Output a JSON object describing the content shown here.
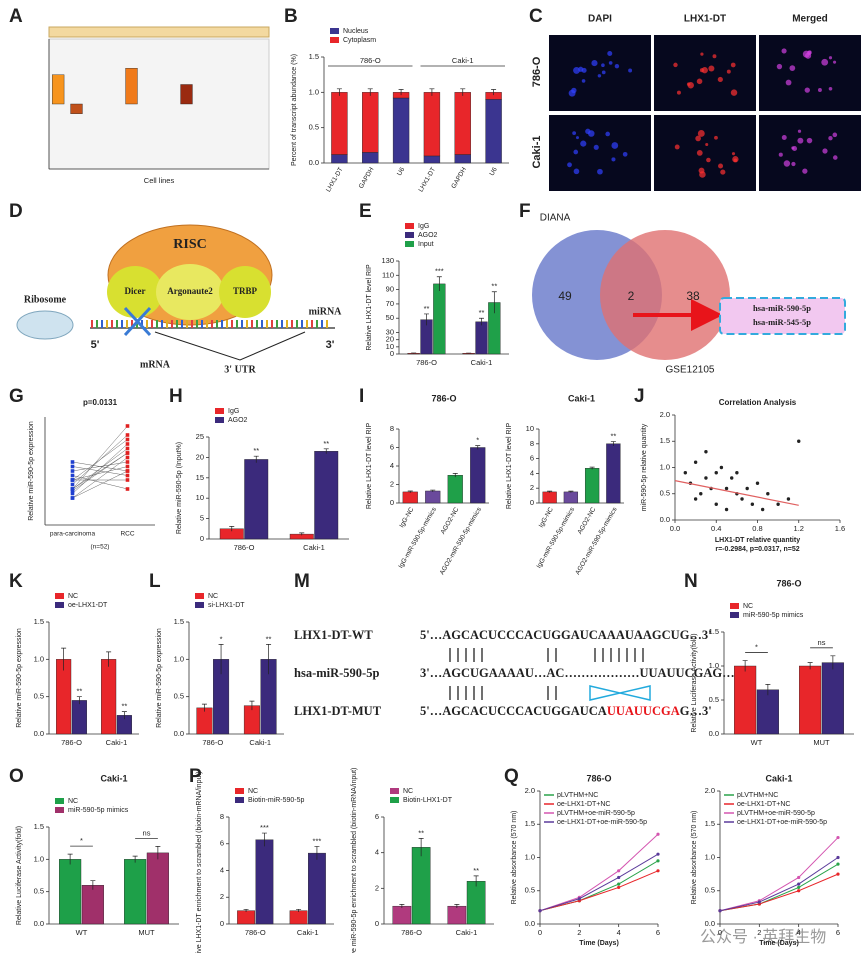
{
  "panels": [
    {
      "letter": "A",
      "type": "bar",
      "xlabel": "Cell lines",
      "ylim": [
        -1,
        1
      ],
      "categories": [
        null,
        null,
        null,
        null,
        null,
        null,
        null,
        null,
        null,
        null,
        null,
        null
      ],
      "series": [
        {
          "colors": [
            "#f7941d",
            "#c0501a",
            null,
            null,
            "#f07a1a",
            null,
            null,
            "#9a2a10",
            null,
            null,
            null,
            null
          ],
          "values": [
            0.45,
            -0.15,
            null,
            null,
            0.55,
            null,
            null,
            0.3,
            null,
            null,
            null,
            null
          ]
        }
      ]
    },
    {
      "letter": "B",
      "type": "bar",
      "stacked": true,
      "ylabel": "Percent of transcript abundance (%)",
      "ylim": [
        0,
        1.5
      ],
      "yticks": [
        {
          "value": 0,
          "label": "0.0"
        },
        0.5,
        {
          "value": 1,
          "label": "1.0"
        },
        1.5
      ],
      "groups": [
        {
          "name": "786-O",
          "categories": [
            "LHX1-DT",
            "GAPDH",
            "U6"
          ]
        },
        {
          "name": "Caki-1",
          "categories": [
            "LHX1-DT",
            "GAPDH",
            "U6"
          ]
        }
      ],
      "series": [
        {
          "name": "Nucleus",
          "color": "#3b3590",
          "values": [
            0.12,
            0.15,
            0.92,
            0.1,
            0.12,
            0.9
          ]
        },
        {
          "name": "Cytoplasm",
          "color": "#e8262a",
          "values": [
            0.88,
            0.85,
            0.08,
            0.9,
            0.88,
            0.1
          ],
          "errors": [
            0.05,
            0.05,
            0.04,
            0.05,
            0.05,
            0.04
          ]
        }
      ]
    },
    {
      "letter": "C",
      "type": "images",
      "columns": [
        "DAPI",
        "LHX1-DT",
        "Merged"
      ],
      "rows": [
        "786-O",
        "Caki-1"
      ]
    },
    {
      "letter": "D",
      "type": "diagram",
      "complex": "RISC",
      "parts": [
        "Dicer",
        "Argonaute2",
        "TRBP"
      ],
      "ribosome": "Ribosome",
      "mirna": "miRNA",
      "five": "5'",
      "three": "3'",
      "mrna": "mRNA",
      "utr": "3' UTR"
    },
    {
      "letter": "E",
      "type": "bar",
      "ylabel": "Relative LHX1-DT level RIP",
      "categories": [
        "786-O",
        "Caki-1"
      ],
      "ylim": [
        0,
        130
      ],
      "yticks": [
        0,
        10,
        20,
        30,
        50,
        70,
        90,
        110,
        130
      ],
      "series": [
        {
          "name": "IgG",
          "color": "#e8262a",
          "values": [
            1,
            1
          ],
          "errors": [
            0.5,
            0.3
          ]
        },
        {
          "name": "AGO2",
          "color": "#3b2a7c",
          "values": [
            48,
            45
          ],
          "errors": [
            8,
            5
          ],
          "sig": [
            "**",
            "**"
          ]
        },
        {
          "name": "Input",
          "color": "#1fa049",
          "values": [
            98,
            72
          ],
          "errors": [
            10,
            15
          ],
          "sig": [
            "***",
            "**"
          ]
        }
      ]
    },
    {
      "letter": "F",
      "type": "venn",
      "sets": [
        {
          "name": "DIANA",
          "only": 49
        },
        {
          "name": "GSE12105",
          "only": 38
        }
      ],
      "overlap": 2,
      "result": [
        "hsa-miR-590-5p",
        "hsa-miR-545-5p"
      ]
    },
    {
      "letter": "G",
      "type": "paired",
      "title": "p=0.0131",
      "ylabel": "Relative miR-590-5p expression",
      "categories": [
        "para-carcinoma",
        "RCC"
      ],
      "note": "(n=52)",
      "ylim": [
        0,
        12
      ],
      "before": [
        3,
        4,
        5,
        3.5,
        6,
        4.5,
        5.5,
        4,
        7,
        3,
        5,
        6.5,
        4,
        5,
        3.8
      ],
      "after": [
        6,
        8,
        5,
        9,
        7,
        10,
        4,
        8.5,
        6,
        7.5,
        9.5,
        5.5,
        11,
        6.5,
        8
      ]
    },
    {
      "letter": "H",
      "type": "bar",
      "ylabel": "Relative miR-590-5p (Input%)",
      "categories": [
        "786-O",
        "Caki-1"
      ],
      "ylim": [
        0,
        25
      ],
      "yticks": [
        0,
        5,
        10,
        15,
        20,
        25
      ],
      "series": [
        {
          "name": "IgG",
          "color": "#e8262a",
          "values": [
            2.5,
            1.2
          ],
          "errors": [
            0.6,
            0.3
          ]
        },
        {
          "name": "AGO2",
          "color": "#3b2a7c",
          "values": [
            19.5,
            21.5
          ],
          "errors": [
            0.8,
            0.6
          ],
          "sig": [
            "**",
            "**"
          ]
        }
      ]
    },
    {
      "letter": "I",
      "type": "bar",
      "title": "786-O",
      "ylabel": "Relative LHX1-DT level RIP",
      "categories": [
        "IgG-NC",
        "IgG-miR-590-5p-mimics",
        "AGO2-NC",
        "AGO2-miR-590-5p-mimics"
      ],
      "ylim": [
        0,
        8
      ],
      "yticks": [
        0,
        2,
        4,
        6,
        8
      ],
      "series": [
        {
          "colors": [
            "#e8262a",
            "#6a4a9c",
            "#1fa049",
            "#3b2a7c"
          ],
          "values": [
            1.2,
            1.3,
            3.0,
            6.0
          ],
          "errors": [
            0.1,
            0.1,
            0.2,
            0.2
          ],
          "sig": [
            null,
            null,
            null,
            "*"
          ]
        }
      ]
    },
    {
      "type": "bar",
      "title": "Caki-1",
      "ylabel": "Relative LHX1-DT level RIP",
      "categories": [
        "IgG-NC",
        "IgG-miR-590-5p-mimics",
        "AGO2-NC",
        "AGO2-miR-590-5p-mimics"
      ],
      "ylim": [
        0,
        10
      ],
      "yticks": [
        0,
        2,
        4,
        6,
        8,
        10
      ],
      "series": [
        {
          "colors": [
            "#e8262a",
            "#6a4a9c",
            "#1fa049",
            "#3b2a7c"
          ],
          "values": [
            1.5,
            1.5,
            4.7,
            8.0
          ],
          "errors": [
            0.1,
            0.1,
            0.15,
            0.3
          ],
          "sig": [
            null,
            null,
            null,
            "**"
          ]
        }
      ]
    },
    {
      "letter": "J",
      "type": "scatter",
      "title": "Correlation Analysis",
      "xlabel": "LHX1-DT relative quantity",
      "ylabel": "miR-590-5p relative quantity",
      "note": "r=-0.2984, p=0.0317, n=52",
      "xlim": [
        0,
        1.6
      ],
      "xticks": [
        {
          "value": 0,
          "label": "0.0"
        },
        0.4,
        0.8,
        1.2,
        1.6
      ],
      "ylim": [
        0,
        2
      ],
      "yticks": [
        {
          "value": 0,
          "label": "0.0"
        },
        0.5,
        {
          "value": 1,
          "label": "1.0"
        },
        1.5,
        {
          "value": 2,
          "label": "2.0"
        }
      ],
      "x": [
        0.1,
        0.15,
        0.2,
        0.25,
        0.3,
        0.3,
        0.35,
        0.4,
        0.4,
        0.45,
        0.5,
        0.5,
        0.55,
        0.6,
        0.6,
        0.65,
        0.7,
        0.75,
        0.8,
        0.85,
        0.9,
        1.0,
        1.1,
        1.2,
        0.2
      ],
      "y": [
        0.9,
        0.7,
        1.1,
        0.5,
        0.8,
        1.3,
        0.6,
        0.9,
        0.3,
        1.0,
        0.6,
        0.2,
        0.8,
        0.5,
        0.9,
        0.4,
        0.6,
        0.3,
        0.7,
        0.2,
        0.5,
        0.3,
        0.4,
        1.5,
        0.4
      ],
      "fit_x": [
        0,
        1.2
      ],
      "fit_y": [
        0.75,
        0.28
      ],
      "color": "#222222",
      "fit_color": "#e06060"
    },
    {
      "letter": "K",
      "type": "bar",
      "ylabel": "Relative miR-590-5p expression",
      "categories": [
        "786-O",
        "Caki-1"
      ],
      "ylim": [
        0,
        1.5
      ],
      "yticks": [
        {
          "value": 0,
          "label": "0.0"
        },
        0.5,
        {
          "value": 1,
          "label": "1.0"
        },
        1.5
      ],
      "series": [
        {
          "name": "NC",
          "color": "#e8262a",
          "values": [
            1,
            1
          ],
          "errors": [
            0.15,
            0.1
          ]
        },
        {
          "name": "oe-LHX1-DT",
          "color": "#3b2a7c",
          "values": [
            0.45,
            0.25
          ],
          "errors": [
            0.05,
            0.05
          ],
          "sig": [
            "**",
            "**"
          ]
        }
      ]
    },
    {
      "letter": "L",
      "type": "bar",
      "ylabel": "Relative miR-590-5p expression",
      "categories": [
        "786-O",
        "Caki-1"
      ],
      "ylim": [
        0,
        1.5
      ],
      "yticks": [
        {
          "value": 0,
          "label": "0.0"
        },
        0.5,
        {
          "value": 1,
          "label": "1.0"
        },
        1.5
      ],
      "series": [
        {
          "name": "NC",
          "color": "#e8262a",
          "values": [
            0.35,
            0.38
          ],
          "errors": [
            0.05,
            0.06
          ]
        },
        {
          "name": "si-LHX1-DT",
          "color": "#3b2a7c",
          "values": [
            1.0,
            1.0
          ],
          "errors": [
            0.2,
            0.2
          ],
          "sig": [
            "*",
            "**"
          ]
        }
      ]
    },
    {
      "letter": "M",
      "type": "sequence",
      "rows": [
        {
          "name": "LHX1-DT-WT",
          "seq": "5'…AGCACUCCCACUGGAUCAAAUAAGCUG…3'"
        },
        {
          "name": "hsa-miR-590-5p",
          "seq": "3'…AGCUGAAAAU…AC………………UUAUUCGAG…5'"
        },
        {
          "name": "LHX1-DT-MUT",
          "seq": "5'…AGCACUCCCACUGGAUCA",
          "mut": "UUAUUCGA",
          "tail": "G…3'"
        }
      ]
    },
    {
      "letter": "N",
      "type": "bar",
      "title": "786-O",
      "ylabel": "Relative Luciferase Activity(fold)",
      "categories": [
        "WT",
        "MUT"
      ],
      "ylim": [
        0,
        1.5
      ],
      "yticks": [
        {
          "value": 0,
          "label": "0.0"
        },
        0.5,
        {
          "value": 1,
          "label": "1.0"
        },
        1.5
      ],
      "brackets": [
        "*",
        "ns"
      ],
      "series": [
        {
          "name": "NC",
          "color": "#e8262a",
          "values": [
            1.0,
            1.0
          ],
          "errors": [
            0.08,
            0.05
          ]
        },
        {
          "name": "miR-590-5p mimics",
          "color": "#3b2a7c",
          "values": [
            0.65,
            1.05
          ],
          "errors": [
            0.08,
            0.1
          ]
        }
      ]
    },
    {
      "letter": "O",
      "type": "bar",
      "title": "Caki-1",
      "ylabel": "Relative Luciferase Activity(fold)",
      "categories": [
        "WT",
        "MUT"
      ],
      "ylim": [
        0,
        1.5
      ],
      "yticks": [
        {
          "value": 0,
          "label": "0.0"
        },
        0.5,
        {
          "value": 1,
          "label": "1.0"
        },
        1.5
      ],
      "brackets": [
        "*",
        "ns"
      ],
      "series": [
        {
          "name": "NC",
          "color": "#1ea049",
          "values": [
            1.0,
            1.0
          ],
          "errors": [
            0.08,
            0.05
          ]
        },
        {
          "name": "miR-590-5p mimics",
          "color": "#a0306a",
          "values": [
            0.6,
            1.1
          ],
          "errors": [
            0.07,
            0.1
          ]
        }
      ]
    },
    {
      "letter": "P",
      "type": "bar",
      "ylabel": "Relative LHX1-DT enrichment to scrambled (biotin-mRNA/input)",
      "categories": [
        "786-O",
        "Caki-1"
      ],
      "ylim": [
        0,
        8
      ],
      "yticks": [
        0,
        2,
        4,
        6,
        8
      ],
      "series": [
        {
          "name": "NC",
          "color": "#e8262a",
          "values": [
            1,
            1
          ],
          "errors": [
            0.1,
            0.1
          ]
        },
        {
          "name": "Biotin-miR-590-5p",
          "color": "#3b2a7c",
          "values": [
            6.3,
            5.3
          ],
          "errors": [
            0.5,
            0.5
          ],
          "sig": [
            "***",
            "***"
          ]
        }
      ]
    },
    {
      "type": "bar",
      "ylabel": "Relative miR-590-5p enrichment to scrambled (biotin-mRNA/input)",
      "categories": [
        "786-O",
        "Caki-1"
      ],
      "ylim": [
        0,
        6
      ],
      "yticks": [
        0,
        2,
        4,
        6
      ],
      "series": [
        {
          "name": "NC",
          "color": "#b03a7e",
          "values": [
            1,
            1
          ],
          "errors": [
            0.1,
            0.1
          ]
        },
        {
          "name": "Biotin-LHX1-DT",
          "color": "#1fa049",
          "values": [
            4.3,
            2.4
          ],
          "errors": [
            0.5,
            0.3
          ],
          "sig": [
            "**",
            "**"
          ]
        }
      ]
    },
    {
      "letter": "Q",
      "type": "line",
      "title": "786-O",
      "xlabel": "Time (Days)",
      "ylabel": "Relative absorbance (570 nm)",
      "x": [
        0,
        2,
        4,
        6
      ],
      "xlim": [
        0,
        6
      ],
      "xticks": [
        0,
        2,
        4,
        6
      ],
      "ylim": [
        0,
        2
      ],
      "yticks": [
        {
          "value": 0,
          "label": "0.0"
        },
        0.5,
        {
          "value": 1,
          "label": "1.0"
        },
        1.5,
        {
          "value": 2,
          "label": "2.0"
        }
      ],
      "series": [
        {
          "name": "pLVTHM+NC",
          "color": "#2aa34a",
          "values": [
            0.2,
            0.35,
            0.6,
            0.95
          ]
        },
        {
          "name": "oe-LHX1-DT+NC",
          "color": "#e8262a",
          "values": [
            0.2,
            0.35,
            0.55,
            0.8
          ]
        },
        {
          "name": "pLVTHM+oe-miR-590-5p",
          "color": "#d455b0",
          "values": [
            0.2,
            0.4,
            0.8,
            1.35
          ]
        },
        {
          "name": "oe-LHX1-DT+oe-miR-590-5p",
          "color": "#5a3a9a",
          "values": [
            0.2,
            0.38,
            0.7,
            1.05
          ]
        }
      ]
    },
    {
      "type": "line",
      "title": "Caki-1",
      "xlabel": "Time (Days)",
      "ylabel": "Relative absorbance (570 nm)",
      "x": [
        0,
        2,
        4,
        6
      ],
      "xlim": [
        0,
        6
      ],
      "xticks": [
        0,
        2,
        4,
        6
      ],
      "ylim": [
        0,
        2
      ],
      "yticks": [
        {
          "value": 0,
          "label": "0.0"
        },
        0.5,
        {
          "value": 1,
          "label": "1.0"
        },
        1.5,
        {
          "value": 2,
          "label": "2.0"
        }
      ],
      "series": [
        {
          "name": "pLVTHM+NC",
          "color": "#2aa34a",
          "values": [
            0.2,
            0.3,
            0.55,
            0.9
          ]
        },
        {
          "name": "oe-LHX1-DT+NC",
          "color": "#e8262a",
          "values": [
            0.2,
            0.3,
            0.5,
            0.75
          ]
        },
        {
          "name": "pLVTHM+oe-miR-590-5p",
          "color": "#d455b0",
          "values": [
            0.2,
            0.35,
            0.7,
            1.3
          ]
        },
        {
          "name": "oe-LHX1-DT+oe-miR-590-5p",
          "color": "#5a3a9a",
          "values": [
            0.2,
            0.33,
            0.6,
            1.0
          ]
        }
      ]
    }
  ],
  "watermark": "公众号 · 英拜生物"
}
